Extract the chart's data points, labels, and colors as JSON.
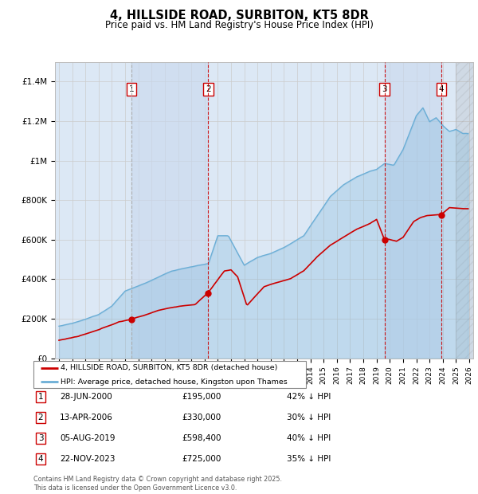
{
  "title": "4, HILLSIDE ROAD, SURBITON, KT5 8DR",
  "subtitle": "Price paid vs. HM Land Registry's House Price Index (HPI)",
  "footer": "Contains HM Land Registry data © Crown copyright and database right 2025.\nThis data is licensed under the Open Government Licence v3.0.",
  "legend_line1": "4, HILLSIDE ROAD, SURBITON, KT5 8DR (detached house)",
  "legend_line2": "HPI: Average price, detached house, Kingston upon Thames",
  "transactions": [
    {
      "num": 1,
      "date": "28-JUN-2000",
      "price": "£195,000",
      "hpi": "42% ↓ HPI",
      "year": 2000.49
    },
    {
      "num": 2,
      "date": "13-APR-2006",
      "price": "£330,000",
      "hpi": "30% ↓ HPI",
      "year": 2006.28
    },
    {
      "num": 3,
      "date": "05-AUG-2019",
      "price": "£598,400",
      "hpi": "40% ↓ HPI",
      "year": 2019.59
    },
    {
      "num": 4,
      "date": "22-NOV-2023",
      "price": "£725,000",
      "hpi": "35% ↓ HPI",
      "year": 2023.89
    }
  ],
  "sale_years": [
    2000.49,
    2006.28,
    2019.59,
    2023.89
  ],
  "sale_prices": [
    195000,
    330000,
    598400,
    725000
  ],
  "hpi_color": "#6baed6",
  "price_color": "#cc0000",
  "vline_color": "#cc0000",
  "vline1_color": "#aaaaaa",
  "grid_color": "#cccccc",
  "bg_color": "#dce8f5",
  "ylim": [
    0,
    1500000
  ],
  "xlim": [
    1994.7,
    2026.3
  ],
  "ylabel_ticks": [
    0,
    200000,
    400000,
    600000,
    800000,
    1000000,
    1200000,
    1400000
  ],
  "ylabel_labels": [
    "£0",
    "£200K",
    "£400K",
    "£600K",
    "£800K",
    "£1M",
    "£1.2M",
    "£1.4M"
  ],
  "xticks": [
    1995,
    1996,
    1997,
    1998,
    1999,
    2000,
    2001,
    2002,
    2003,
    2004,
    2005,
    2006,
    2007,
    2008,
    2009,
    2010,
    2011,
    2012,
    2013,
    2014,
    2015,
    2016,
    2017,
    2018,
    2019,
    2020,
    2021,
    2022,
    2023,
    2024,
    2025,
    2026
  ]
}
